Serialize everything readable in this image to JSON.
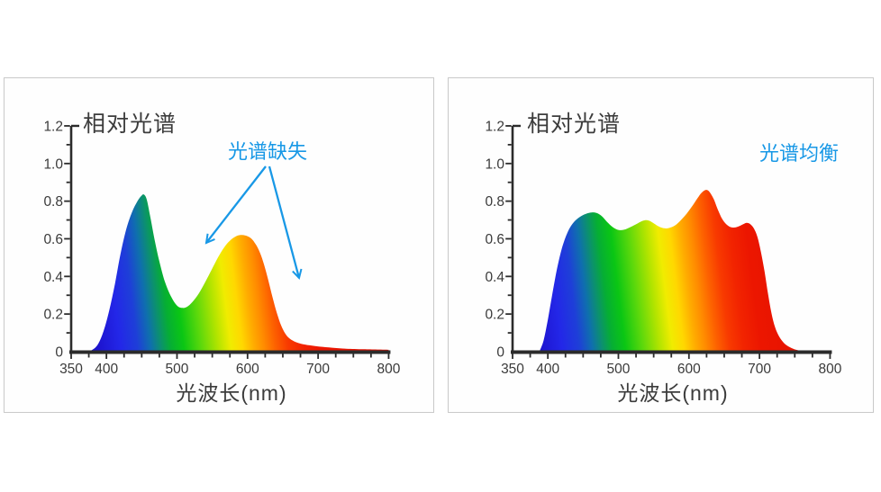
{
  "panels": [
    {
      "title": "相对光谱",
      "xlabel": "光波长(nm)",
      "annotation": "光谱缺失"
    },
    {
      "title": "相对光谱",
      "xlabel": "光波长(nm)",
      "annotation": "光谱均衡"
    }
  ],
  "colors": {
    "annotation_blue": "#1898E6",
    "axis": "#2b2b2b",
    "tick_label": "#3a3a3a",
    "title_text": "#3c3c3c",
    "panel_border": "#c9c9c9",
    "spectrum_stops": [
      [
        350,
        "#1B10A6"
      ],
      [
        392,
        "#1D13CE"
      ],
      [
        424,
        "#2327E8"
      ],
      [
        448,
        "#1E3FD8"
      ],
      [
        466,
        "#0F6FAE"
      ],
      [
        480,
        "#0C9070"
      ],
      [
        494,
        "#06AE34"
      ],
      [
        512,
        "#0AC614"
      ],
      [
        536,
        "#5AD80C"
      ],
      [
        560,
        "#B2E400"
      ],
      [
        578,
        "#F0EC00"
      ],
      [
        594,
        "#FFD800"
      ],
      [
        610,
        "#FFAC00"
      ],
      [
        624,
        "#FF8C00"
      ],
      [
        640,
        "#FD6200"
      ],
      [
        658,
        "#F83A00"
      ],
      [
        678,
        "#F22400"
      ],
      [
        702,
        "#EC1600"
      ],
      [
        800,
        "#E01000"
      ]
    ]
  },
  "chart_data": [
    {
      "type": "area",
      "title": "相对光谱",
      "xlabel": "光波长(nm)",
      "ylabel": "",
      "xlim": [
        350,
        800
      ],
      "ylim": [
        0,
        1.2
      ],
      "x_ticks": [
        350,
        400,
        500,
        600,
        700,
        800
      ],
      "y_ticks": [
        "0",
        "0.2",
        "0.4",
        "0.6",
        "0.8",
        "1.0",
        "1.2"
      ],
      "x_minor_step": 25,
      "y_minor_step": 0.1,
      "grid": false,
      "annotation": {
        "text": "光谱缺失",
        "color": "#1898E6"
      },
      "points": [
        [
          372,
          0
        ],
        [
          380,
          0.01
        ],
        [
          388,
          0.04
        ],
        [
          396,
          0.11
        ],
        [
          404,
          0.22
        ],
        [
          412,
          0.36
        ],
        [
          420,
          0.52
        ],
        [
          428,
          0.65
        ],
        [
          436,
          0.74
        ],
        [
          444,
          0.8
        ],
        [
          450,
          0.83
        ],
        [
          453,
          0.835
        ],
        [
          457,
          0.81
        ],
        [
          462,
          0.72
        ],
        [
          468,
          0.6
        ],
        [
          475,
          0.48
        ],
        [
          483,
          0.37
        ],
        [
          492,
          0.29
        ],
        [
          500,
          0.245
        ],
        [
          507,
          0.233
        ],
        [
          514,
          0.238
        ],
        [
          522,
          0.265
        ],
        [
          531,
          0.31
        ],
        [
          540,
          0.37
        ],
        [
          549,
          0.435
        ],
        [
          558,
          0.5
        ],
        [
          567,
          0.555
        ],
        [
          575,
          0.59
        ],
        [
          583,
          0.612
        ],
        [
          590,
          0.62
        ],
        [
          597,
          0.617
        ],
        [
          604,
          0.605
        ],
        [
          610,
          0.58
        ],
        [
          616,
          0.54
        ],
        [
          622,
          0.48
        ],
        [
          628,
          0.4
        ],
        [
          634,
          0.31
        ],
        [
          640,
          0.225
        ],
        [
          646,
          0.155
        ],
        [
          652,
          0.105
        ],
        [
          658,
          0.075
        ],
        [
          666,
          0.055
        ],
        [
          676,
          0.042
        ],
        [
          688,
          0.034
        ],
        [
          702,
          0.027
        ],
        [
          720,
          0.021
        ],
        [
          740,
          0.016
        ],
        [
          765,
          0.013
        ],
        [
          800,
          0.01
        ]
      ]
    },
    {
      "type": "area",
      "title": "相对光谱",
      "xlabel": "光波长(nm)",
      "ylabel": "",
      "xlim": [
        350,
        800
      ],
      "ylim": [
        0,
        1.2
      ],
      "x_ticks": [
        350,
        400,
        500,
        600,
        700,
        800
      ],
      "y_ticks": [
        "0",
        "0.2",
        "0.4",
        "0.6",
        "0.8",
        "1.0",
        "1.2"
      ],
      "x_minor_step": 25,
      "y_minor_step": 0.1,
      "grid": false,
      "annotation": {
        "text": "光谱均衡",
        "color": "#1898E6"
      },
      "points": [
        [
          388,
          0
        ],
        [
          394,
          0.06
        ],
        [
          400,
          0.17
        ],
        [
          406,
          0.3
        ],
        [
          413,
          0.44
        ],
        [
          420,
          0.55
        ],
        [
          428,
          0.635
        ],
        [
          436,
          0.685
        ],
        [
          445,
          0.715
        ],
        [
          454,
          0.733
        ],
        [
          462,
          0.74
        ],
        [
          469,
          0.737
        ],
        [
          476,
          0.722
        ],
        [
          484,
          0.69
        ],
        [
          492,
          0.662
        ],
        [
          500,
          0.647
        ],
        [
          508,
          0.648
        ],
        [
          516,
          0.66
        ],
        [
          524,
          0.675
        ],
        [
          531,
          0.69
        ],
        [
          537,
          0.698
        ],
        [
          543,
          0.697
        ],
        [
          549,
          0.685
        ],
        [
          556,
          0.668
        ],
        [
          562,
          0.658
        ],
        [
          568,
          0.655
        ],
        [
          574,
          0.66
        ],
        [
          581,
          0.673
        ],
        [
          588,
          0.697
        ],
        [
          596,
          0.73
        ],
        [
          604,
          0.77
        ],
        [
          612,
          0.815
        ],
        [
          618,
          0.845
        ],
        [
          624,
          0.86
        ],
        [
          629,
          0.85
        ],
        [
          635,
          0.812
        ],
        [
          641,
          0.755
        ],
        [
          647,
          0.706
        ],
        [
          653,
          0.677
        ],
        [
          659,
          0.662
        ],
        [
          665,
          0.66
        ],
        [
          671,
          0.667
        ],
        [
          677,
          0.678
        ],
        [
          682,
          0.685
        ],
        [
          687,
          0.678
        ],
        [
          692,
          0.655
        ],
        [
          697,
          0.61
        ],
        [
          702,
          0.53
        ],
        [
          707,
          0.43
        ],
        [
          712,
          0.31
        ],
        [
          717,
          0.205
        ],
        [
          722,
          0.13
        ],
        [
          728,
          0.08
        ],
        [
          735,
          0.045
        ],
        [
          743,
          0.024
        ],
        [
          752,
          0.01
        ],
        [
          762,
          0.003
        ],
        [
          772,
          0
        ]
      ]
    }
  ]
}
